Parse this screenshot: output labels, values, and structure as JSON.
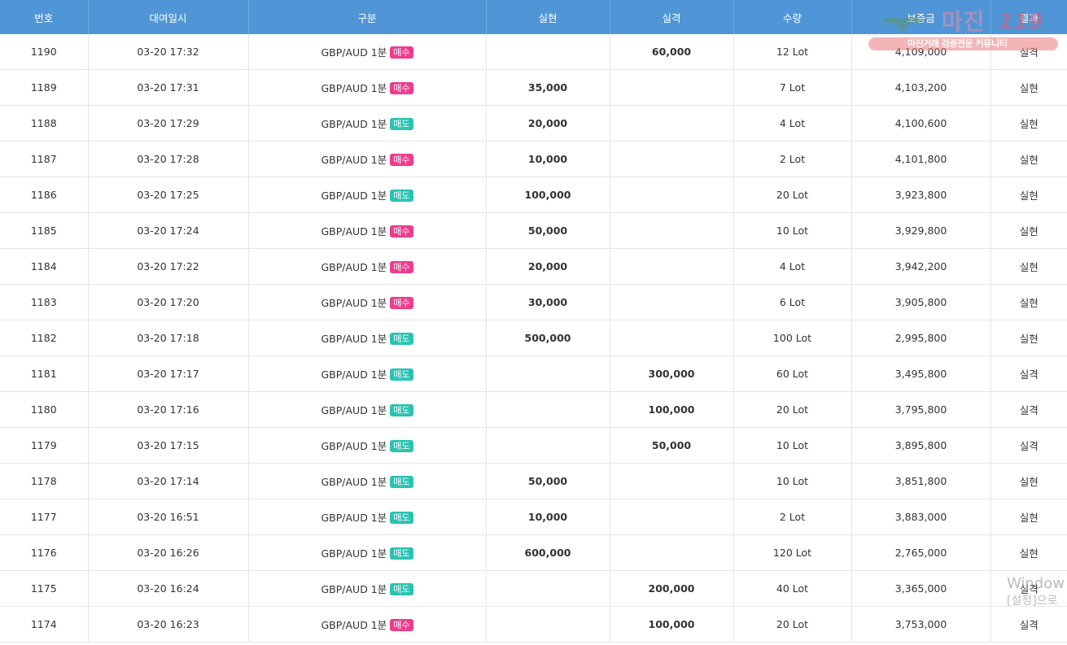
{
  "columns": [
    "번호",
    "대여일시",
    "구분",
    "실현",
    "실격",
    "수량",
    "보증금",
    "결과"
  ],
  "rows": [
    {
      "no": "1190",
      "date": "03-20 17:32",
      "pair": "GBP/AUD 1분",
      "side": "매수",
      "profit": "",
      "loss": "60,000",
      "qty": "12 Lot",
      "deposit": "4,109,000",
      "result": "실격"
    },
    {
      "no": "1189",
      "date": "03-20 17:31",
      "pair": "GBP/AUD 1분",
      "side": "매수",
      "profit": "35,000",
      "loss": "",
      "qty": "7 Lot",
      "deposit": "4,103,200",
      "result": "실현"
    },
    {
      "no": "1188",
      "date": "03-20 17:29",
      "pair": "GBP/AUD 1분",
      "side": "매도",
      "profit": "20,000",
      "loss": "",
      "qty": "4 Lot",
      "deposit": "4,100,600",
      "result": "실현"
    },
    {
      "no": "1187",
      "date": "03-20 17:28",
      "pair": "GBP/AUD 1분",
      "side": "매수",
      "profit": "10,000",
      "loss": "",
      "qty": "2 Lot",
      "deposit": "4,101,800",
      "result": "실현"
    },
    {
      "no": "1186",
      "date": "03-20 17:25",
      "pair": "GBP/AUD 1분",
      "side": "매도",
      "profit": "100,000",
      "loss": "",
      "qty": "20 Lot",
      "deposit": "3,923,800",
      "result": "실현"
    },
    {
      "no": "1185",
      "date": "03-20 17:24",
      "pair": "GBP/AUD 1분",
      "side": "매수",
      "profit": "50,000",
      "loss": "",
      "qty": "10 Lot",
      "deposit": "3,929,800",
      "result": "실현"
    },
    {
      "no": "1184",
      "date": "03-20 17:22",
      "pair": "GBP/AUD 1분",
      "side": "매수",
      "profit": "20,000",
      "loss": "",
      "qty": "4 Lot",
      "deposit": "3,942,200",
      "result": "실현"
    },
    {
      "no": "1183",
      "date": "03-20 17:20",
      "pair": "GBP/AUD 1분",
      "side": "매수",
      "profit": "30,000",
      "loss": "",
      "qty": "6 Lot",
      "deposit": "3,905,800",
      "result": "실현"
    },
    {
      "no": "1182",
      "date": "03-20 17:18",
      "pair": "GBP/AUD 1분",
      "side": "매도",
      "profit": "500,000",
      "loss": "",
      "qty": "100 Lot",
      "deposit": "2,995,800",
      "result": "실현"
    },
    {
      "no": "1181",
      "date": "03-20 17:17",
      "pair": "GBP/AUD 1분",
      "side": "매도",
      "profit": "",
      "loss": "300,000",
      "qty": "60 Lot",
      "deposit": "3,495,800",
      "result": "실격"
    },
    {
      "no": "1180",
      "date": "03-20 17:16",
      "pair": "GBP/AUD 1분",
      "side": "매도",
      "profit": "",
      "loss": "100,000",
      "qty": "20 Lot",
      "deposit": "3,795,800",
      "result": "실격"
    },
    {
      "no": "1179",
      "date": "03-20 17:15",
      "pair": "GBP/AUD 1분",
      "side": "매도",
      "profit": "",
      "loss": "50,000",
      "qty": "10 Lot",
      "deposit": "3,895,800",
      "result": "실격"
    },
    {
      "no": "1178",
      "date": "03-20 17:14",
      "pair": "GBP/AUD 1분",
      "side": "매도",
      "profit": "50,000",
      "loss": "",
      "qty": "10 Lot",
      "deposit": "3,851,800",
      "result": "실현"
    },
    {
      "no": "1177",
      "date": "03-20 16:51",
      "pair": "GBP/AUD 1분",
      "side": "매도",
      "profit": "10,000",
      "loss": "",
      "qty": "2 Lot",
      "deposit": "3,883,000",
      "result": "실현"
    },
    {
      "no": "1176",
      "date": "03-20 16:26",
      "pair": "GBP/AUD 1분",
      "side": "매도",
      "profit": "600,000",
      "loss": "",
      "qty": "120 Lot",
      "deposit": "2,765,000",
      "result": "실현"
    },
    {
      "no": "1175",
      "date": "03-20 16:24",
      "pair": "GBP/AUD 1분",
      "side": "매도",
      "profit": "",
      "loss": "200,000",
      "qty": "40 Lot",
      "deposit": "3,365,000",
      "result": "실격"
    },
    {
      "no": "1174",
      "date": "03-20 16:23",
      "pair": "GBP/AUD 1분",
      "side": "매수",
      "profit": "",
      "loss": "100,000",
      "qty": "20 Lot",
      "deposit": "3,753,000",
      "result": "실격"
    }
  ],
  "watermark": {
    "title": "마진",
    "number": "119",
    "subtitle": "마진거래 검증전문 커뮤니티"
  },
  "os_overlay": {
    "line1": "Window",
    "line2": "[설정]으로"
  },
  "colors": {
    "header_bg": "#5096d6",
    "buy_badge": "#ee3b8e",
    "sell_badge": "#2ac3b3",
    "profit_text": "#5bb3a8",
    "loss_text": "#c8302e",
    "result_win": "#2d6da8",
    "result_loss": "#d2302d"
  }
}
